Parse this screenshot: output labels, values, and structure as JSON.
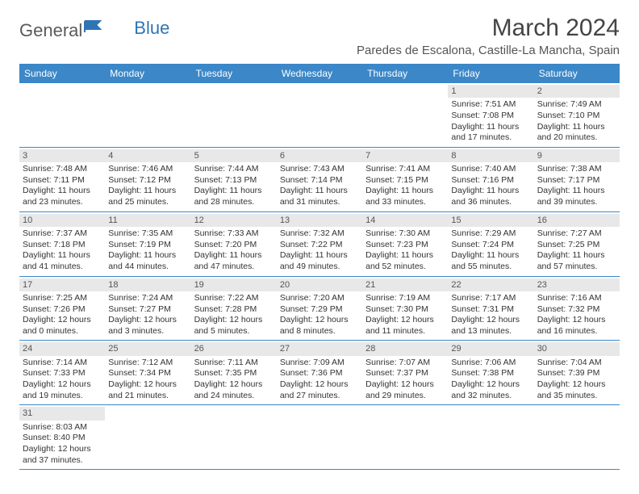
{
  "brand": {
    "part1": "General",
    "part2": "Blue"
  },
  "title": "March 2024",
  "location": "Paredes de Escalona, Castille-La Mancha, Spain",
  "colors": {
    "header_bg": "#3b87c8",
    "header_text": "#ffffff",
    "daynum_bg": "#e8e8e8",
    "row_border": "#3b87c8",
    "brand_blue": "#2f74b5",
    "text": "#333333"
  },
  "dayNames": [
    "Sunday",
    "Monday",
    "Tuesday",
    "Wednesday",
    "Thursday",
    "Friday",
    "Saturday"
  ],
  "weeks": [
    [
      null,
      null,
      null,
      null,
      null,
      {
        "n": "1",
        "sr": "Sunrise: 7:51 AM",
        "ss": "Sunset: 7:08 PM",
        "d1": "Daylight: 11 hours",
        "d2": "and 17 minutes."
      },
      {
        "n": "2",
        "sr": "Sunrise: 7:49 AM",
        "ss": "Sunset: 7:10 PM",
        "d1": "Daylight: 11 hours",
        "d2": "and 20 minutes."
      }
    ],
    [
      {
        "n": "3",
        "sr": "Sunrise: 7:48 AM",
        "ss": "Sunset: 7:11 PM",
        "d1": "Daylight: 11 hours",
        "d2": "and 23 minutes."
      },
      {
        "n": "4",
        "sr": "Sunrise: 7:46 AM",
        "ss": "Sunset: 7:12 PM",
        "d1": "Daylight: 11 hours",
        "d2": "and 25 minutes."
      },
      {
        "n": "5",
        "sr": "Sunrise: 7:44 AM",
        "ss": "Sunset: 7:13 PM",
        "d1": "Daylight: 11 hours",
        "d2": "and 28 minutes."
      },
      {
        "n": "6",
        "sr": "Sunrise: 7:43 AM",
        "ss": "Sunset: 7:14 PM",
        "d1": "Daylight: 11 hours",
        "d2": "and 31 minutes."
      },
      {
        "n": "7",
        "sr": "Sunrise: 7:41 AM",
        "ss": "Sunset: 7:15 PM",
        "d1": "Daylight: 11 hours",
        "d2": "and 33 minutes."
      },
      {
        "n": "8",
        "sr": "Sunrise: 7:40 AM",
        "ss": "Sunset: 7:16 PM",
        "d1": "Daylight: 11 hours",
        "d2": "and 36 minutes."
      },
      {
        "n": "9",
        "sr": "Sunrise: 7:38 AM",
        "ss": "Sunset: 7:17 PM",
        "d1": "Daylight: 11 hours",
        "d2": "and 39 minutes."
      }
    ],
    [
      {
        "n": "10",
        "sr": "Sunrise: 7:37 AM",
        "ss": "Sunset: 7:18 PM",
        "d1": "Daylight: 11 hours",
        "d2": "and 41 minutes."
      },
      {
        "n": "11",
        "sr": "Sunrise: 7:35 AM",
        "ss": "Sunset: 7:19 PM",
        "d1": "Daylight: 11 hours",
        "d2": "and 44 minutes."
      },
      {
        "n": "12",
        "sr": "Sunrise: 7:33 AM",
        "ss": "Sunset: 7:20 PM",
        "d1": "Daylight: 11 hours",
        "d2": "and 47 minutes."
      },
      {
        "n": "13",
        "sr": "Sunrise: 7:32 AM",
        "ss": "Sunset: 7:22 PM",
        "d1": "Daylight: 11 hours",
        "d2": "and 49 minutes."
      },
      {
        "n": "14",
        "sr": "Sunrise: 7:30 AM",
        "ss": "Sunset: 7:23 PM",
        "d1": "Daylight: 11 hours",
        "d2": "and 52 minutes."
      },
      {
        "n": "15",
        "sr": "Sunrise: 7:29 AM",
        "ss": "Sunset: 7:24 PM",
        "d1": "Daylight: 11 hours",
        "d2": "and 55 minutes."
      },
      {
        "n": "16",
        "sr": "Sunrise: 7:27 AM",
        "ss": "Sunset: 7:25 PM",
        "d1": "Daylight: 11 hours",
        "d2": "and 57 minutes."
      }
    ],
    [
      {
        "n": "17",
        "sr": "Sunrise: 7:25 AM",
        "ss": "Sunset: 7:26 PM",
        "d1": "Daylight: 12 hours",
        "d2": "and 0 minutes."
      },
      {
        "n": "18",
        "sr": "Sunrise: 7:24 AM",
        "ss": "Sunset: 7:27 PM",
        "d1": "Daylight: 12 hours",
        "d2": "and 3 minutes."
      },
      {
        "n": "19",
        "sr": "Sunrise: 7:22 AM",
        "ss": "Sunset: 7:28 PM",
        "d1": "Daylight: 12 hours",
        "d2": "and 5 minutes."
      },
      {
        "n": "20",
        "sr": "Sunrise: 7:20 AM",
        "ss": "Sunset: 7:29 PM",
        "d1": "Daylight: 12 hours",
        "d2": "and 8 minutes."
      },
      {
        "n": "21",
        "sr": "Sunrise: 7:19 AM",
        "ss": "Sunset: 7:30 PM",
        "d1": "Daylight: 12 hours",
        "d2": "and 11 minutes."
      },
      {
        "n": "22",
        "sr": "Sunrise: 7:17 AM",
        "ss": "Sunset: 7:31 PM",
        "d1": "Daylight: 12 hours",
        "d2": "and 13 minutes."
      },
      {
        "n": "23",
        "sr": "Sunrise: 7:16 AM",
        "ss": "Sunset: 7:32 PM",
        "d1": "Daylight: 12 hours",
        "d2": "and 16 minutes."
      }
    ],
    [
      {
        "n": "24",
        "sr": "Sunrise: 7:14 AM",
        "ss": "Sunset: 7:33 PM",
        "d1": "Daylight: 12 hours",
        "d2": "and 19 minutes."
      },
      {
        "n": "25",
        "sr": "Sunrise: 7:12 AM",
        "ss": "Sunset: 7:34 PM",
        "d1": "Daylight: 12 hours",
        "d2": "and 21 minutes."
      },
      {
        "n": "26",
        "sr": "Sunrise: 7:11 AM",
        "ss": "Sunset: 7:35 PM",
        "d1": "Daylight: 12 hours",
        "d2": "and 24 minutes."
      },
      {
        "n": "27",
        "sr": "Sunrise: 7:09 AM",
        "ss": "Sunset: 7:36 PM",
        "d1": "Daylight: 12 hours",
        "d2": "and 27 minutes."
      },
      {
        "n": "28",
        "sr": "Sunrise: 7:07 AM",
        "ss": "Sunset: 7:37 PM",
        "d1": "Daylight: 12 hours",
        "d2": "and 29 minutes."
      },
      {
        "n": "29",
        "sr": "Sunrise: 7:06 AM",
        "ss": "Sunset: 7:38 PM",
        "d1": "Daylight: 12 hours",
        "d2": "and 32 minutes."
      },
      {
        "n": "30",
        "sr": "Sunrise: 7:04 AM",
        "ss": "Sunset: 7:39 PM",
        "d1": "Daylight: 12 hours",
        "d2": "and 35 minutes."
      }
    ],
    [
      {
        "n": "31",
        "sr": "Sunrise: 8:03 AM",
        "ss": "Sunset: 8:40 PM",
        "d1": "Daylight: 12 hours",
        "d2": "and 37 minutes."
      },
      null,
      null,
      null,
      null,
      null,
      null
    ]
  ]
}
